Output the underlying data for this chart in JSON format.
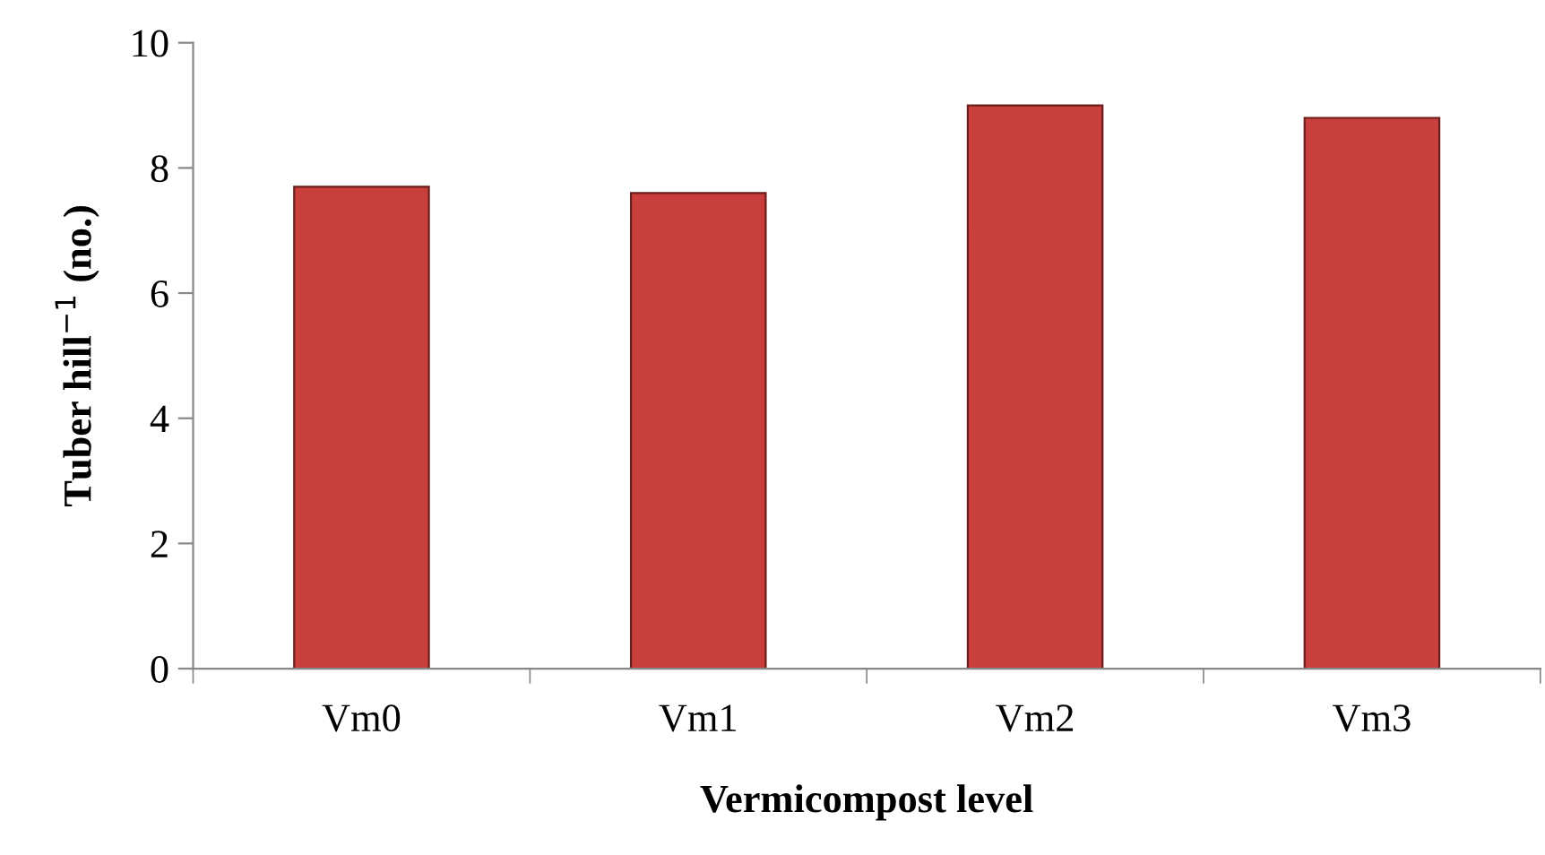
{
  "chart_data": {
    "type": "bar",
    "xlabel": "Vermicompost level",
    "ylabel": "Tuber hill$^{−1}$ (no.)",
    "categories": [
      "Vm0",
      "Vm1",
      "Vm2",
      "Vm3"
    ],
    "values": [
      7.7,
      7.6,
      9.0,
      8.8
    ],
    "color": "#c93f3c",
    "ylim": [
      0,
      10
    ],
    "yticks": [
      0,
      2,
      4,
      6,
      8,
      10
    ],
    "grid": false,
    "legend": false
  }
}
